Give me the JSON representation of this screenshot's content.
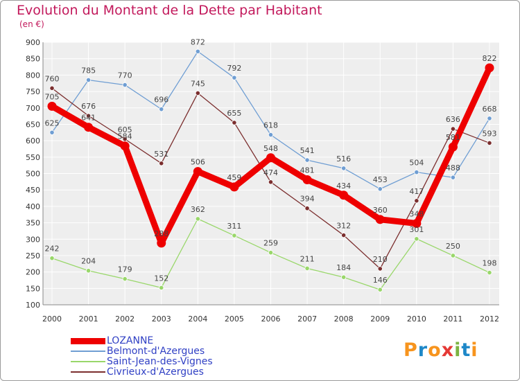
{
  "chart_data": {
    "type": "line",
    "title": "Evolution du Montant de la Dette par Habitant",
    "subtitle": "(en €)",
    "xlabel": "",
    "ylabel": "",
    "x": [
      "2000",
      "2001",
      "2002",
      "2003",
      "2004",
      "2005",
      "2006",
      "2007",
      "2008",
      "2009",
      "2010",
      "2011",
      "2012"
    ],
    "ylim": [
      100,
      900
    ],
    "yticks": [
      100,
      150,
      200,
      250,
      300,
      350,
      400,
      450,
      500,
      550,
      600,
      650,
      700,
      750,
      800,
      850,
      900
    ],
    "grid": true,
    "legend_position": "bottom-left",
    "series": [
      {
        "name": "LOZANNE",
        "color": "#ee0000",
        "values": [
          705,
          641,
          584,
          288,
          506,
          459,
          548,
          481,
          434,
          360,
          348,
          581,
          822
        ],
        "labels": [
          "705",
          "641",
          "584",
          "288",
          "506",
          "459",
          "548",
          "481",
          "434",
          "360",
          "348",
          "581",
          "822"
        ]
      },
      {
        "name": "Belmont-d'Azergues",
        "color": "#6f9ed3",
        "values": [
          625,
          785,
          770,
          696,
          872,
          792,
          618,
          541,
          516,
          453,
          504,
          488,
          668
        ],
        "labels": [
          "625",
          "785",
          "770",
          "696",
          "872",
          "792",
          "618",
          "541",
          "516",
          "453",
          "504",
          "488",
          "668"
        ]
      },
      {
        "name": "Saint-Jean-des-Vignes",
        "color": "#99d76a",
        "values": [
          242,
          204,
          179,
          152,
          362,
          311,
          259,
          211,
          184,
          146,
          301,
          250,
          198
        ],
        "labels": [
          "242",
          "204",
          "179",
          "152",
          "362",
          "311",
          "259",
          "211",
          "184",
          "146",
          "301",
          "250",
          "198"
        ]
      },
      {
        "name": "Civrieux-d'Azergues",
        "color": "#7b2e2e",
        "values": [
          760,
          676,
          605,
          531,
          745,
          655,
          474,
          394,
          312,
          210,
          417,
          636,
          593
        ],
        "labels": [
          "760",
          "676",
          "605",
          "531",
          "745",
          "655",
          "474",
          "394",
          "312",
          "210",
          "417",
          "636",
          "593"
        ]
      }
    ]
  },
  "logo": {
    "letters": [
      "P",
      "r",
      "o",
      "x",
      "i",
      "t",
      "i"
    ],
    "colors": [
      "#f7941d",
      "#1e88c8",
      "#f7941d",
      "#e53935",
      "#7cb342",
      "#1e88c8",
      "#f7941d"
    ]
  }
}
